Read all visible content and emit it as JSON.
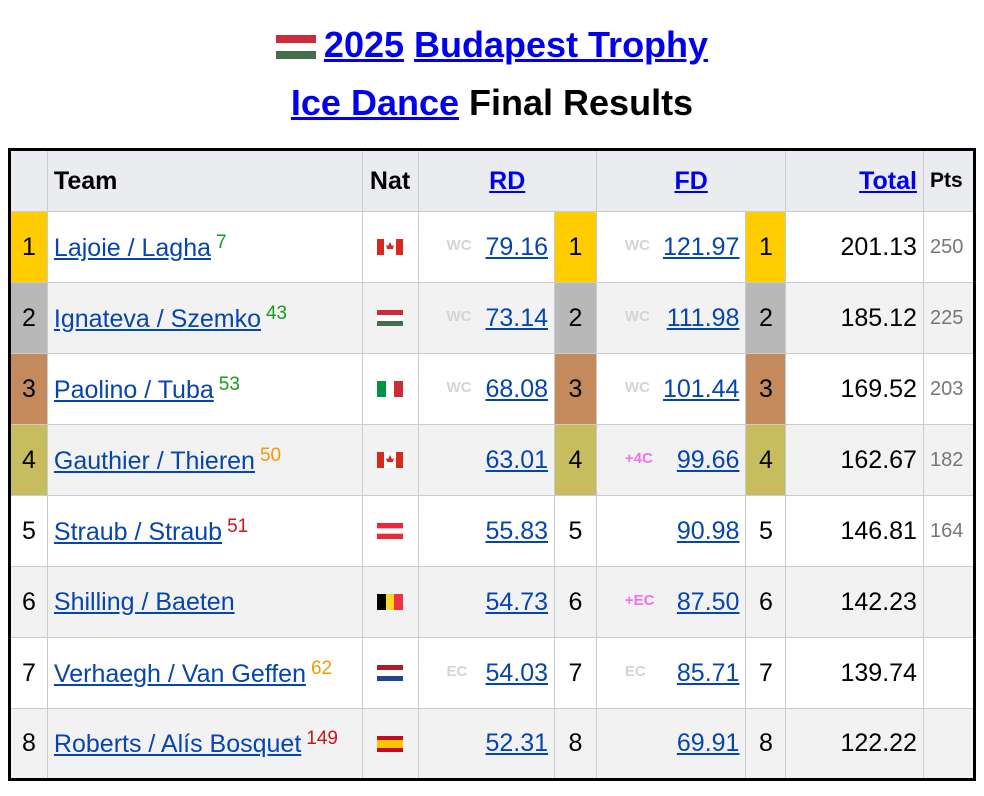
{
  "header": {
    "year": "2025",
    "event": "Budapest Trophy",
    "discipline": "Ice Dance",
    "suffix": "Final Results"
  },
  "table": {
    "columns": {
      "team": "Team",
      "nat": "Nat",
      "rd": "RD",
      "fd": "FD",
      "total": "Total",
      "pts": "Pts"
    },
    "rows": [
      {
        "place": "1",
        "team": "Lajoie / Lagha",
        "rank": "7",
        "rank_color": "#1a9a1a",
        "rd_badge": "WC",
        "rd": "79.16",
        "rd_place": "1",
        "fd_badge": "WC",
        "fd": "121.97",
        "fd_place": "1",
        "total": "201.13",
        "pts": "250"
      },
      {
        "place": "2",
        "team": "Ignateva / Szemko",
        "rank": "43",
        "rank_color": "#1a9a1a",
        "rd_badge": "WC",
        "rd": "73.14",
        "rd_place": "2",
        "fd_badge": "WC",
        "fd": "111.98",
        "fd_place": "2",
        "total": "185.12",
        "pts": "225"
      },
      {
        "place": "3",
        "team": "Paolino / Tuba",
        "rank": "53",
        "rank_color": "#1a9a1a",
        "rd_badge": "WC",
        "rd": "68.08",
        "rd_place": "3",
        "fd_badge": "WC",
        "fd": "101.44",
        "fd_place": "3",
        "total": "169.52",
        "pts": "203"
      },
      {
        "place": "4",
        "team": "Gauthier / Thieren",
        "rank": "50",
        "rank_color": "#f59a00",
        "rd": "63.01",
        "rd_place": "4",
        "fd_badge": "+4C",
        "fd_badge_color": "#f070f0",
        "fd": "99.66",
        "fd_place": "4",
        "total": "162.67",
        "pts": "182"
      },
      {
        "place": "5",
        "team": "Straub / Straub",
        "rank": "51",
        "rank_color": "#c81818",
        "rd": "55.83",
        "rd_place": "5",
        "fd": "90.98",
        "fd_place": "5",
        "total": "146.81",
        "pts": "164"
      },
      {
        "place": "6",
        "team": "Shilling / Baeten",
        "rd": "54.73",
        "rd_place": "6",
        "fd_badge": "+EC",
        "fd_badge_color": "#f070f0",
        "fd": "87.50",
        "fd_place": "6",
        "total": "142.23"
      },
      {
        "place": "7",
        "team": "Verhaegh / Van Geffen",
        "rank": "62",
        "rank_color": "#f59a00",
        "rd_badge": "EC",
        "rd": "54.03",
        "rd_place": "7",
        "fd_badge": "EC",
        "fd": "85.71",
        "fd_place": "7",
        "total": "139.74"
      },
      {
        "place": "8",
        "team": "Roberts / Alís Bosquet",
        "rank": "149",
        "rank_color": "#c81818",
        "rd": "52.31",
        "rd_place": "8",
        "fd": "69.91",
        "fd_place": "8",
        "total": "122.22"
      }
    ]
  }
}
